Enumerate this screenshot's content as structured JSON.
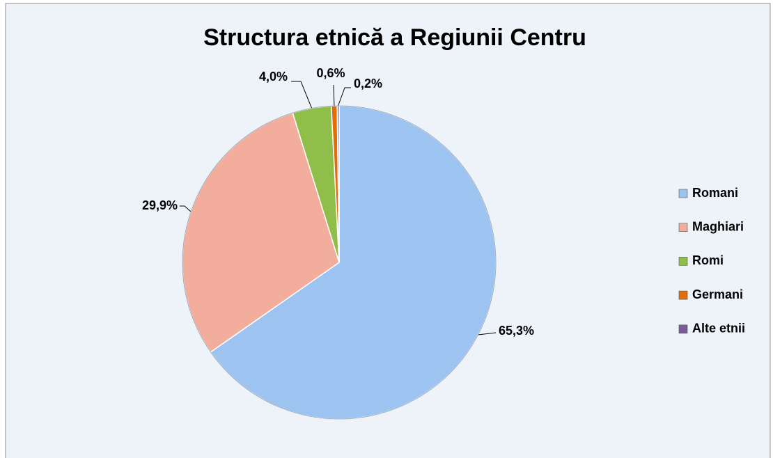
{
  "chart_data": {
    "type": "pie",
    "title": "Structura etnică a Regiunii Centru",
    "categories": [
      "Romani",
      "Maghiari",
      "Romi",
      "Germani",
      "Alte etnii"
    ],
    "values": [
      65.3,
      29.9,
      4.0,
      0.6,
      0.2
    ],
    "value_labels": [
      "65,3%",
      "29,9%",
      "4,0%",
      "0,6%",
      "0,2%"
    ],
    "colors": [
      "#9dc3f0",
      "#f2ad9c",
      "#8fbf4a",
      "#e36c0a",
      "#7a5a9a"
    ],
    "legend": "right"
  }
}
